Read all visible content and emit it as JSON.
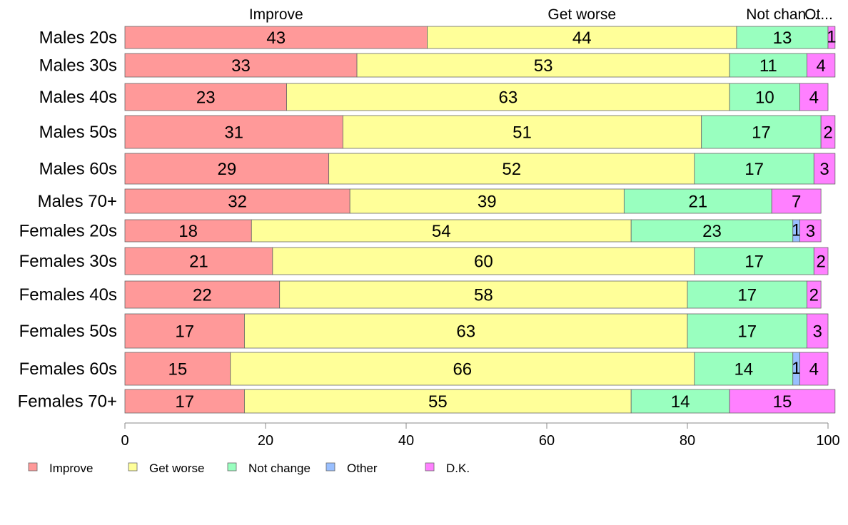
{
  "chart_data": {
    "type": "bar",
    "orientation": "horizontal",
    "stacked": true,
    "categories": [
      "Males 20s",
      "Males 30s",
      "Males 40s",
      "Males 50s",
      "Males 60s",
      "Males 70+",
      "Females 20s",
      "Females 30s",
      "Females 40s",
      "Females 50s",
      "Females 60s",
      "Females 70+"
    ],
    "series": [
      {
        "name": "Improve",
        "color": "#FF9999",
        "values": [
          43,
          33,
          23,
          31,
          29,
          32,
          18,
          21,
          22,
          17,
          15,
          17
        ]
      },
      {
        "name": "Get worse",
        "color": "#FFFF99",
        "values": [
          44,
          53,
          63,
          51,
          52,
          39,
          54,
          60,
          58,
          63,
          66,
          55
        ]
      },
      {
        "name": "Not change",
        "color": "#99FFBF",
        "values": [
          13,
          11,
          10,
          17,
          17,
          21,
          23,
          17,
          17,
          17,
          14,
          14
        ]
      },
      {
        "name": "Other",
        "color": "#99BFFF",
        "values": [
          0,
          0,
          0,
          0,
          0,
          0,
          1,
          0,
          0,
          0,
          1,
          0
        ]
      },
      {
        "name": "D.K.",
        "color": "#FF80FF",
        "values": [
          1,
          4,
          4,
          2,
          3,
          7,
          3,
          2,
          2,
          3,
          4,
          15
        ]
      }
    ],
    "top_labels": [
      "Improve",
      "Get worse",
      "Not chan...",
      "Ot..."
    ],
    "xlim": [
      0,
      100
    ],
    "xticks": [
      0,
      20,
      40,
      60,
      80,
      100
    ],
    "legend_position": "bottom",
    "grid": false,
    "title": "",
    "xlabel": "",
    "ylabel": ""
  }
}
